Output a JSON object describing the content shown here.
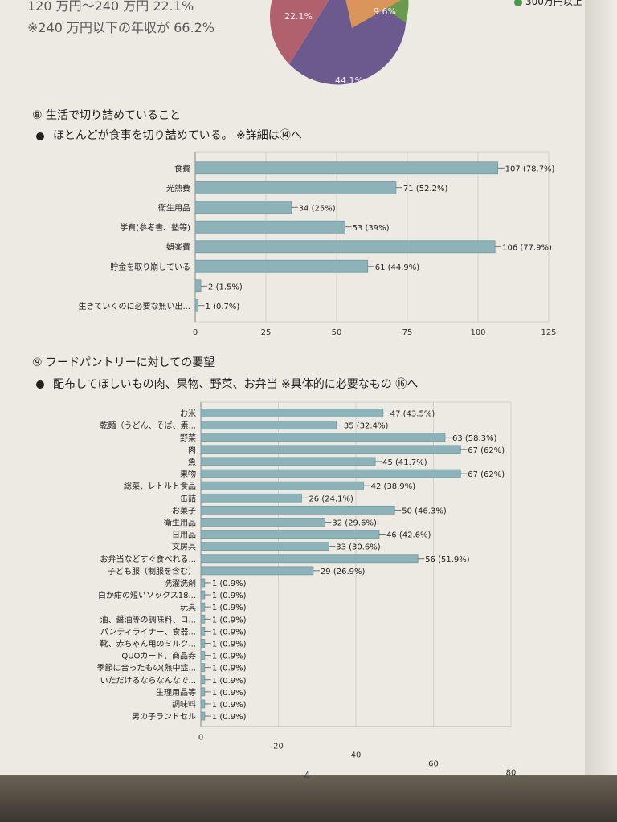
{
  "header": {
    "line1": "120 万円〜240 万円 22.1%",
    "line2": "※240 万円以下の年収が 66.2%",
    "legend_partial": "300万円以上"
  },
  "pie_partial": {
    "labels": [
      "22.1%",
      "9.6%",
      "44.1%"
    ],
    "colors": [
      "#b0616d",
      "#d9955a",
      "#6a9a4e",
      "#6c5a8e"
    ]
  },
  "section8": {
    "title": "⑧ 生活で切り詰めていること",
    "note": "ほとんどが食事を切り詰めている。 ※詳細は⑭へ"
  },
  "section9": {
    "title": "⑨ フードパントリーに対しての要望",
    "note": "配布してほしいもの肉、果物、野菜、お弁当 ※具体的に必要なもの ⑯へ"
  },
  "page_number": "4",
  "colors": {
    "bar": "#8db3b8",
    "bar_edge": "#6f9ca2",
    "grid": "#d2d0ca"
  },
  "chart_data": [
    {
      "type": "bar",
      "orientation": "horizontal",
      "categories": [
        "食費",
        "光熱費",
        "衛生用品",
        "学費(参考書、塾等)",
        "娯楽費",
        "貯金を取り崩している",
        "",
        "生きていくのに必要な無い出..."
      ],
      "values": [
        107,
        71,
        34,
        53,
        106,
        61,
        2,
        1
      ],
      "data_labels": [
        "107 (78.7%)",
        "71 (52.2%)",
        "34 (25%)",
        "53 (39%)",
        "106 (77.9%)",
        "61 (44.9%)",
        "2 (1.5%)",
        "1 (0.7%)"
      ],
      "xlim": [
        0,
        125
      ],
      "xticks": [
        "0",
        "25",
        "50",
        "75",
        "100",
        "125"
      ],
      "grid": true
    },
    {
      "type": "bar",
      "orientation": "horizontal",
      "categories": [
        "お米",
        "乾麺（うどん、そば、素...",
        "野菜",
        "肉",
        "魚",
        "果物",
        "総菜、レトルト食品",
        "缶詰",
        "お菓子",
        "衛生用品",
        "日用品",
        "文房具",
        "お弁当などすぐ食べれる...",
        "子ども服（制服を含む）",
        "洗濯洗剤",
        "白か紺の短いソックス18...",
        "玩具",
        "油、醤油等の調味料、コ...",
        "パンティライナー、食器...",
        "靴、赤ちゃん用のミルク...",
        "QUOカード、商品券",
        "季節に合ったもの(熱中症...",
        "いただけるならなんなで...",
        "生理用品等",
        "調味料",
        "男の子ランドセル"
      ],
      "values": [
        47,
        35,
        63,
        67,
        45,
        67,
        42,
        26,
        50,
        32,
        46,
        33,
        56,
        29,
        1,
        1,
        1,
        1,
        1,
        1,
        1,
        1,
        1,
        1,
        1,
        1
      ],
      "data_labels": [
        "47 (43.5%)",
        "35 (32.4%)",
        "63 (58.3%)",
        "67 (62%)",
        "45 (41.7%)",
        "67 (62%)",
        "42 (38.9%)",
        "26 (24.1%)",
        "50 (46.3%)",
        "32 (29.6%)",
        "46 (42.6%)",
        "33 (30.6%)",
        "56 (51.9%)",
        "29 (26.9%)",
        "1 (0.9%)",
        "1 (0.9%)",
        "1 (0.9%)",
        "1 (0.9%)",
        "1 (0.9%)",
        "1 (0.9%)",
        "1 (0.9%)",
        "1 (0.9%)",
        "1 (0.9%)",
        "1 (0.9%)",
        "1 (0.9%)",
        "1 (0.9%)"
      ],
      "xlim": [
        0,
        80
      ],
      "xticks": [
        "0",
        "20",
        "40",
        "60",
        "80"
      ],
      "grid": true
    }
  ]
}
